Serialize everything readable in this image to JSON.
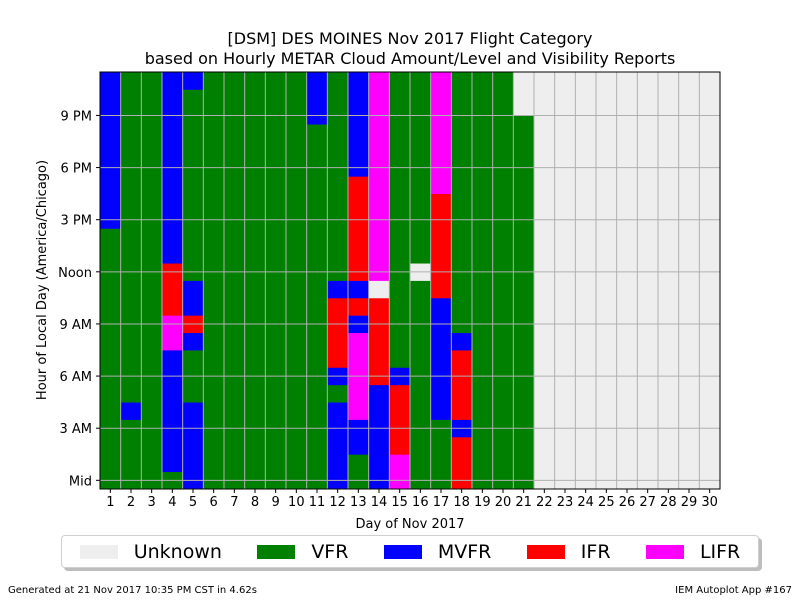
{
  "chart_data": {
    "type": "heatmap",
    "title": "[DSM] DES MOINES Nov 2017 Flight Category",
    "subtitle": "based on Hourly METAR Cloud Amount/Level and Visibility Reports",
    "xlabel": "Day of Nov 2017",
    "ylabel": "Hour of Local Day (America/Chicago)",
    "x_ticks": [
      "1",
      "2",
      "3",
      "4",
      "5",
      "6",
      "7",
      "8",
      "9",
      "10",
      "11",
      "12",
      "13",
      "14",
      "15",
      "16",
      "17",
      "18",
      "19",
      "20",
      "21",
      "22",
      "23",
      "24",
      "25",
      "26",
      "27",
      "28",
      "29",
      "30"
    ],
    "y_ticks": [
      {
        "hour": 0,
        "label": "Mid"
      },
      {
        "hour": 3,
        "label": "3 AM"
      },
      {
        "hour": 6,
        "label": "6 AM"
      },
      {
        "hour": 9,
        "label": "9 AM"
      },
      {
        "hour": 12,
        "label": "Noon"
      },
      {
        "hour": 15,
        "label": "3 PM"
      },
      {
        "hour": 18,
        "label": "6 PM"
      },
      {
        "hour": 21,
        "label": "9 PM"
      }
    ],
    "xlim": [
      0.5,
      30.5
    ],
    "ylim": [
      0,
      24
    ],
    "grid": true,
    "legend_position": "bottom",
    "categories": [
      {
        "code": "U",
        "name": "Unknown",
        "color": "#EEEEEE"
      },
      {
        "code": "V",
        "name": "VFR",
        "color": "#008000"
      },
      {
        "code": "M",
        "name": "MVFR",
        "color": "#0000FF"
      },
      {
        "code": "I",
        "name": "IFR",
        "color": "#FF0000"
      },
      {
        "code": "L",
        "name": "LIFR",
        "color": "#FF00FF"
      }
    ],
    "default_category": "V",
    "cells": [
      {
        "day": 1,
        "hours": [
          15,
          23
        ],
        "cat": "M"
      },
      {
        "day": 2,
        "hours": [
          4,
          4
        ],
        "cat": "M"
      },
      {
        "day": 4,
        "hours": [
          1,
          12
        ],
        "cat": "M"
      },
      {
        "day": 4,
        "hours": [
          8,
          9
        ],
        "cat": "L"
      },
      {
        "day": 4,
        "hours": [
          10,
          12
        ],
        "cat": "I"
      },
      {
        "day": 4,
        "hours": [
          13,
          23
        ],
        "cat": "M"
      },
      {
        "day": 5,
        "hours": [
          0,
          4
        ],
        "cat": "M"
      },
      {
        "day": 5,
        "hours": [
          8,
          8
        ],
        "cat": "M"
      },
      {
        "day": 5,
        "hours": [
          9,
          9
        ],
        "cat": "I"
      },
      {
        "day": 5,
        "hours": [
          10,
          11
        ],
        "cat": "M"
      },
      {
        "day": 5,
        "hours": [
          23,
          23
        ],
        "cat": "M"
      },
      {
        "day": 11,
        "hours": [
          21,
          23
        ],
        "cat": "M"
      },
      {
        "day": 12,
        "hours": [
          0,
          4
        ],
        "cat": "M"
      },
      {
        "day": 12,
        "hours": [
          6,
          6
        ],
        "cat": "M"
      },
      {
        "day": 12,
        "hours": [
          7,
          10
        ],
        "cat": "I"
      },
      {
        "day": 12,
        "hours": [
          11,
          11
        ],
        "cat": "M"
      },
      {
        "day": 13,
        "hours": [
          2,
          3
        ],
        "cat": "M"
      },
      {
        "day": 13,
        "hours": [
          4,
          8
        ],
        "cat": "L"
      },
      {
        "day": 13,
        "hours": [
          9,
          9
        ],
        "cat": "M"
      },
      {
        "day": 13,
        "hours": [
          10,
          10
        ],
        "cat": "I"
      },
      {
        "day": 13,
        "hours": [
          11,
          11
        ],
        "cat": "M"
      },
      {
        "day": 13,
        "hours": [
          12,
          17
        ],
        "cat": "I"
      },
      {
        "day": 13,
        "hours": [
          18,
          23
        ],
        "cat": "M"
      },
      {
        "day": 14,
        "hours": [
          0,
          5
        ],
        "cat": "M"
      },
      {
        "day": 14,
        "hours": [
          6,
          10
        ],
        "cat": "I"
      },
      {
        "day": 14,
        "hours": [
          11,
          11
        ],
        "cat": "U"
      },
      {
        "day": 14,
        "hours": [
          12,
          23
        ],
        "cat": "L"
      },
      {
        "day": 15,
        "hours": [
          0,
          1
        ],
        "cat": "L"
      },
      {
        "day": 15,
        "hours": [
          2,
          5
        ],
        "cat": "I"
      },
      {
        "day": 15,
        "hours": [
          6,
          6
        ],
        "cat": "M"
      },
      {
        "day": 16,
        "hours": [
          12,
          12
        ],
        "cat": "U"
      },
      {
        "day": 17,
        "hours": [
          4,
          10
        ],
        "cat": "M"
      },
      {
        "day": 17,
        "hours": [
          11,
          16
        ],
        "cat": "I"
      },
      {
        "day": 17,
        "hours": [
          17,
          23
        ],
        "cat": "L"
      },
      {
        "day": 18,
        "hours": [
          0,
          2
        ],
        "cat": "I"
      },
      {
        "day": 18,
        "hours": [
          3,
          3
        ],
        "cat": "M"
      },
      {
        "day": 18,
        "hours": [
          4,
          7
        ],
        "cat": "I"
      },
      {
        "day": 18,
        "hours": [
          8,
          8
        ],
        "cat": "M"
      },
      {
        "day": 21,
        "hours": [
          22,
          23
        ],
        "cat": "U"
      },
      {
        "day": 22,
        "hours": [
          0,
          23
        ],
        "cat": "U"
      },
      {
        "day": 23,
        "hours": [
          0,
          23
        ],
        "cat": "U"
      },
      {
        "day": 24,
        "hours": [
          0,
          23
        ],
        "cat": "U"
      },
      {
        "day": 25,
        "hours": [
          0,
          23
        ],
        "cat": "U"
      },
      {
        "day": 26,
        "hours": [
          0,
          23
        ],
        "cat": "U"
      },
      {
        "day": 27,
        "hours": [
          0,
          23
        ],
        "cat": "U"
      },
      {
        "day": 28,
        "hours": [
          0,
          23
        ],
        "cat": "U"
      },
      {
        "day": 29,
        "hours": [
          0,
          23
        ],
        "cat": "U"
      },
      {
        "day": 30,
        "hours": [
          0,
          23
        ],
        "cat": "U"
      }
    ],
    "partial_cells": [
      {
        "day": 21,
        "hour": 21,
        "from_top_fraction": 0.5,
        "cat": "U"
      }
    ]
  },
  "footer": {
    "left": "Generated at 21 Nov 2017 10:35 PM CST in 4.62s",
    "right": "IEM Autoplot App #167"
  }
}
